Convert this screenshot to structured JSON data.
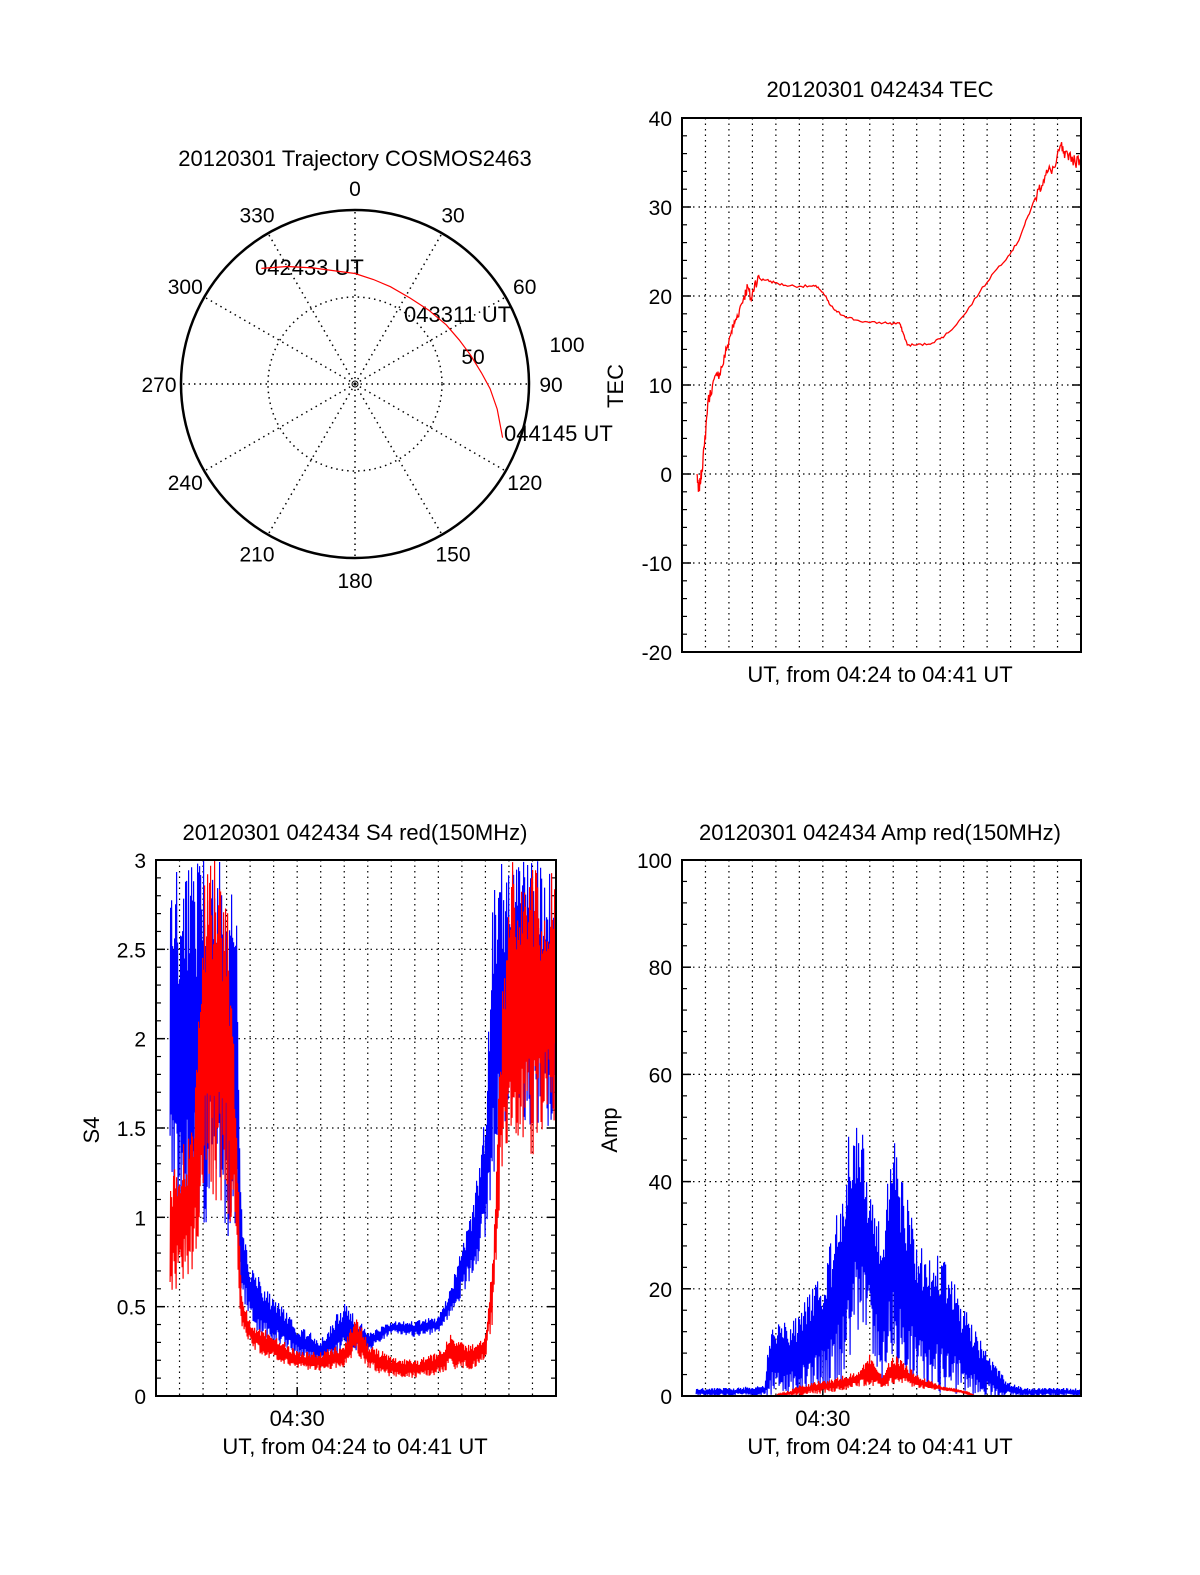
{
  "chart_data": [
    {
      "type": "polar",
      "title": "20120301 Trajectory COSMOS2463",
      "angle_ticks": [
        "0",
        "30",
        "60",
        "90",
        "120",
        "150",
        "180",
        "210",
        "240",
        "270",
        "300",
        "330"
      ],
      "radial_ticks": [
        "50",
        "100"
      ],
      "rlim": [
        0,
        100
      ],
      "series": [
        {
          "name": "trajectory",
          "color": "#ff0000",
          "points": [
            [
              321,
              85.5
            ],
            [
              330,
              78
            ],
            [
              340,
              71
            ],
            [
              350,
              66
            ],
            [
              0,
              63.5
            ],
            [
              10,
              61
            ],
            [
              20,
              59.5
            ],
            [
              32.6,
              58.7
            ],
            [
              45,
              60
            ],
            [
              57,
              62.5
            ],
            [
              67,
              65
            ],
            [
              76,
              68.5
            ],
            [
              85,
              73
            ],
            [
              92,
              77.7
            ],
            [
              100,
              83
            ],
            [
              110,
              90.3
            ]
          ]
        }
      ],
      "annotations": {
        "start": "042433 UT",
        "middle": "043311 UT",
        "end": "044145 UT"
      }
    },
    {
      "type": "line",
      "title": "20120301 042434 TEC",
      "xlabel": "UT, from 04:24 to 04:41 UT",
      "ylabel": "TEC",
      "x_unit": "minutes after 04:24",
      "xlim": [
        0,
        17
      ],
      "ylim": [
        -20,
        40
      ],
      "yticks": [
        "-20",
        "-10",
        "0",
        "10",
        "20",
        "30",
        "40"
      ],
      "color": "#ff0000",
      "x": [
        0.64,
        0.7,
        0.77,
        0.85,
        0.95,
        1.1,
        1.3,
        1.5,
        1.7,
        1.9,
        2.1,
        2.25,
        2.45,
        2.65,
        2.8,
        2.95,
        3.1,
        3.3,
        3.6,
        3.95,
        4.4,
        5.0,
        5.5,
        5.8,
        6.1,
        6.3,
        6.6,
        6.9,
        7.4,
        8.0,
        8.6,
        9.0,
        9.26,
        9.4,
        9.6,
        10.0,
        10.5,
        11.0,
        11.4,
        12.0,
        12.7,
        13.3,
        13.9,
        14.3,
        14.6,
        14.9,
        15.2,
        15.4,
        15.6,
        15.9,
        16.15,
        16.3,
        16.5,
        16.75,
        17.0
      ],
      "y": [
        0,
        -2,
        -1,
        0.5,
        3,
        8,
        10,
        11,
        12,
        14,
        16,
        17,
        18.5,
        20,
        21,
        19.5,
        21.5,
        22,
        21.8,
        21.5,
        21.2,
        21.1,
        21.1,
        21,
        20,
        19,
        18.2,
        17.8,
        17.3,
        17,
        17,
        16.9,
        17,
        16,
        14.5,
        14.5,
        14.6,
        15.2,
        16,
        17.8,
        20.5,
        22.7,
        24.5,
        26,
        28,
        30,
        32,
        33,
        34,
        34.5,
        37,
        35.5,
        36,
        35,
        35.5
      ]
    },
    {
      "type": "area",
      "title": "20120301 042434 S4 red(150MHz)",
      "xlabel": "UT, from 04:24 to 04:41 UT",
      "ylabel": "S4",
      "x_unit": "minutes after 04:24",
      "xlim": [
        0,
        17
      ],
      "ylim": [
        0,
        3
      ],
      "yticks": [
        "0",
        "0.5",
        "1",
        "1.5",
        "2",
        "2.5",
        "3"
      ],
      "xticks": [
        {
          "value": 6,
          "label": "04:30"
        }
      ],
      "series": [
        {
          "name": "blue",
          "color": "#0000ff",
          "t": [
            0.6,
            1.0,
            2.0,
            3.0,
            3.4,
            3.6,
            3.9,
            4.2,
            5.0,
            6.0,
            7.0,
            8.0,
            8.5,
            9.0,
            10.0,
            11.0,
            12.0,
            12.5,
            13.0,
            13.5,
            14.0,
            14.3,
            14.6,
            15.0,
            16.0,
            17.0
          ],
          "lo": [
            1.0,
            0.9,
            0.95,
            0.9,
            0.8,
            0.6,
            0.45,
            0.35,
            0.3,
            0.22,
            0.18,
            0.22,
            0.25,
            0.25,
            0.35,
            0.33,
            0.35,
            0.45,
            0.55,
            0.7,
            0.8,
            1.1,
            1.4,
            1.6,
            1.5,
            1.5
          ],
          "hi": [
            3.0,
            3.0,
            3.0,
            3.0,
            2.8,
            1.1,
            0.75,
            0.7,
            0.55,
            0.4,
            0.32,
            0.55,
            0.45,
            0.35,
            0.42,
            0.42,
            0.45,
            0.6,
            0.85,
            1.1,
            1.7,
            2.8,
            3.0,
            3.0,
            3.0,
            3.0
          ]
        },
        {
          "name": "red",
          "color": "#ff0000",
          "t": [
            0.6,
            1.0,
            1.6,
            2.0,
            2.5,
            3.0,
            3.4,
            3.6,
            3.9,
            4.2,
            5.0,
            6.0,
            7.0,
            8.0,
            8.5,
            9.0,
            10.0,
            11.0,
            12.0,
            12.5,
            13.0,
            13.5,
            14.0,
            14.3,
            14.6,
            15.0,
            16.0,
            17.0
          ],
          "lo": [
            0.55,
            0.6,
            0.7,
            1.0,
            1.1,
            1.0,
            0.9,
            0.4,
            0.3,
            0.25,
            0.2,
            0.15,
            0.14,
            0.15,
            0.25,
            0.15,
            0.1,
            0.1,
            0.12,
            0.15,
            0.15,
            0.15,
            0.2,
            0.4,
            1.0,
            1.5,
            1.3,
            1.5
          ],
          "hi": [
            1.2,
            1.4,
            1.5,
            3.0,
            3.0,
            3.0,
            1.6,
            0.6,
            0.45,
            0.4,
            0.35,
            0.25,
            0.25,
            0.3,
            0.45,
            0.3,
            0.22,
            0.2,
            0.25,
            0.35,
            0.3,
            0.3,
            0.35,
            0.8,
            2.0,
            3.0,
            3.0,
            3.0
          ]
        }
      ]
    },
    {
      "type": "area",
      "title": "20120301 042434 Amp red(150MHz)",
      "xlabel": "UT, from 04:24 to 04:41 UT",
      "ylabel": "Amp",
      "x_unit": "minutes after 04:24",
      "xlim": [
        0,
        17
      ],
      "ylim": [
        0,
        100
      ],
      "yticks": [
        "0",
        "20",
        "40",
        "60",
        "80",
        "100"
      ],
      "xticks": [
        {
          "value": 6,
          "label": "04:30"
        }
      ],
      "series": [
        {
          "name": "blue",
          "color": "#0000ff",
          "t": [
            0.6,
            2.0,
            3.5,
            3.7,
            4.0,
            4.5,
            5.0,
            5.5,
            6.0,
            6.5,
            7.0,
            7.3,
            7.6,
            8.0,
            8.5,
            9.0,
            9.3,
            10.0,
            10.5,
            11.0,
            11.5,
            12.0,
            12.5,
            13.0,
            13.5,
            13.8,
            14.5,
            17.0
          ],
          "lo": [
            0,
            0,
            0,
            0,
            0,
            0,
            0,
            0,
            0,
            1,
            3,
            10,
            13,
            10,
            2,
            8,
            3,
            2,
            1,
            0.5,
            0.5,
            0,
            0,
            0,
            0,
            0,
            0,
            0
          ],
          "hi": [
            1.5,
            1.5,
            2,
            12,
            14,
            14,
            16,
            20,
            25,
            32,
            48,
            55,
            53,
            40,
            33,
            48,
            42,
            30,
            26,
            27,
            22,
            17,
            12,
            8,
            5,
            3,
            1.5,
            1.5
          ]
        },
        {
          "name": "red",
          "color": "#ff0000",
          "t": [
            0.6,
            3.9,
            4.5,
            5.0,
            6.0,
            7.0,
            7.5,
            8.0,
            8.5,
            9.0,
            9.5,
            10.0,
            11.0,
            12.0,
            12.5,
            17.0
          ],
          "lo": [
            0,
            0,
            0,
            0,
            0.5,
            1,
            1.5,
            2,
            1.5,
            2,
            2,
            1.5,
            1,
            0.5,
            0,
            0
          ],
          "hi": [
            0,
            0,
            1,
            2,
            3,
            4,
            5,
            8,
            4,
            8,
            6,
            4,
            2,
            1,
            0,
            0
          ]
        }
      ]
    }
  ]
}
